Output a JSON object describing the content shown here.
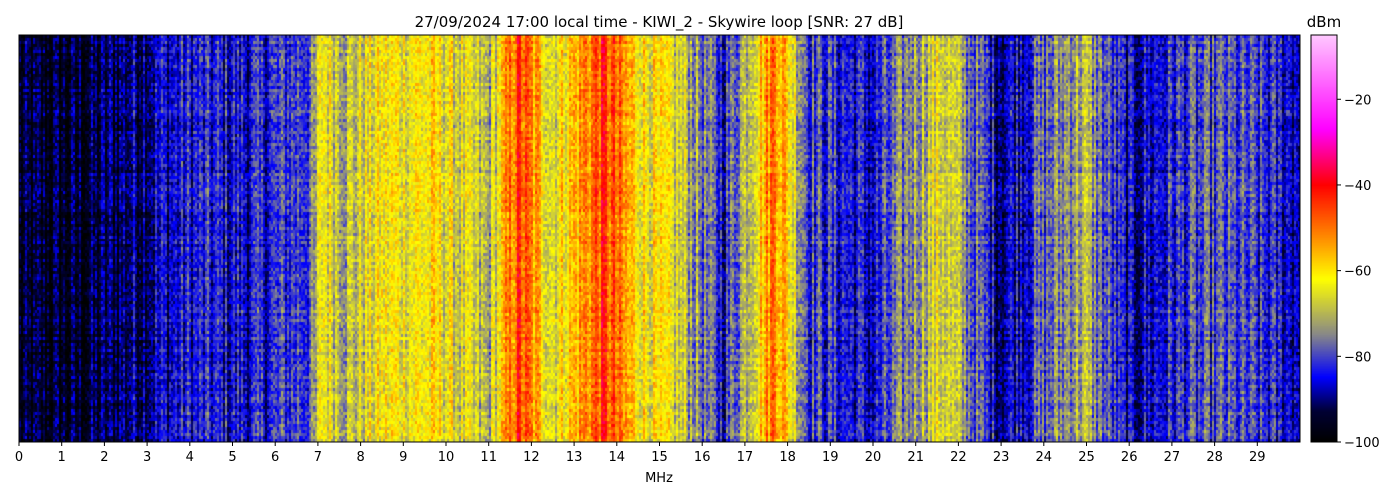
{
  "chart_data": {
    "type": "heatmap",
    "title": "27/09/2024 17:00 local time - KIWI_2 - Skywire loop [SNR: 27 dB]",
    "xlabel": "MHz",
    "ylabel": "",
    "xlim": [
      0,
      30
    ],
    "x_ticks": [
      0,
      1,
      2,
      3,
      4,
      5,
      6,
      7,
      8,
      9,
      10,
      11,
      12,
      13,
      14,
      15,
      16,
      17,
      18,
      19,
      20,
      21,
      22,
      23,
      24,
      25,
      26,
      27,
      28,
      29
    ],
    "colorbar": {
      "label": "dBm",
      "range": [
        -100,
        -5
      ],
      "ticks": [
        -20,
        -40,
        -60,
        -80,
        -100
      ],
      "colormap": [
        {
          "value": -100,
          "color": "#000000"
        },
        {
          "value": -93,
          "color": "#000033"
        },
        {
          "value": -85,
          "color": "#0000ff"
        },
        {
          "value": -75,
          "color": "#888888"
        },
        {
          "value": -62,
          "color": "#ffff00"
        },
        {
          "value": -52,
          "color": "#ff8800"
        },
        {
          "value": -40,
          "color": "#ff0000"
        },
        {
          "value": -27,
          "color": "#ff00ff"
        },
        {
          "value": -5,
          "color": "#ffc8ff"
        }
      ]
    },
    "spectrum_profile": [
      {
        "mhz": 0.0,
        "dbm": -96
      },
      {
        "mhz": 1.5,
        "dbm": -95
      },
      {
        "mhz": 2.5,
        "dbm": -90
      },
      {
        "mhz": 4.0,
        "dbm": -84
      },
      {
        "mhz": 5.5,
        "dbm": -85
      },
      {
        "mhz": 6.9,
        "dbm": -78
      },
      {
        "mhz": 7.1,
        "dbm": -62
      },
      {
        "mhz": 7.7,
        "dbm": -70
      },
      {
        "mhz": 8.5,
        "dbm": -63
      },
      {
        "mhz": 9.8,
        "dbm": -62
      },
      {
        "mhz": 11.0,
        "dbm": -72
      },
      {
        "mhz": 11.7,
        "dbm": -45
      },
      {
        "mhz": 12.5,
        "dbm": -65
      },
      {
        "mhz": 13.7,
        "dbm": -45
      },
      {
        "mhz": 14.5,
        "dbm": -60
      },
      {
        "mhz": 15.5,
        "dbm": -68
      },
      {
        "mhz": 16.5,
        "dbm": -84
      },
      {
        "mhz": 17.7,
        "dbm": -48
      },
      {
        "mhz": 18.5,
        "dbm": -80
      },
      {
        "mhz": 20.0,
        "dbm": -86
      },
      {
        "mhz": 21.0,
        "dbm": -72
      },
      {
        "mhz": 21.6,
        "dbm": -65
      },
      {
        "mhz": 23.0,
        "dbm": -88
      },
      {
        "mhz": 24.9,
        "dbm": -70
      },
      {
        "mhz": 26.0,
        "dbm": -88
      },
      {
        "mhz": 27.2,
        "dbm": -82
      },
      {
        "mhz": 28.2,
        "dbm": -80
      },
      {
        "mhz": 30.0,
        "dbm": -86
      }
    ]
  }
}
